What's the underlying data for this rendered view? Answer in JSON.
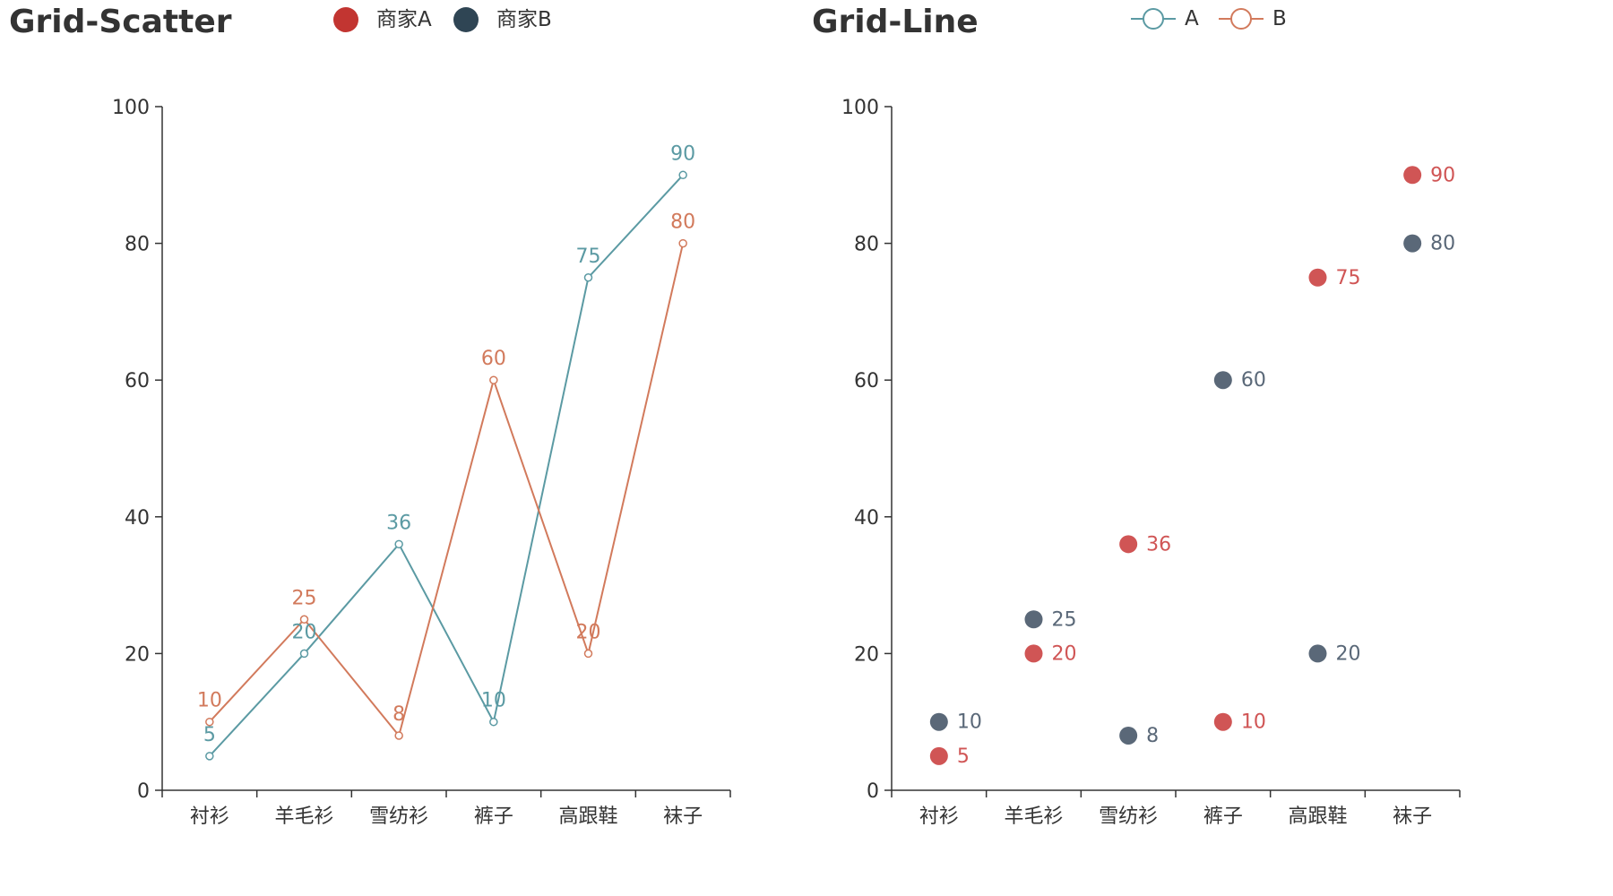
{
  "colors": {
    "axis": "#333333",
    "text": "#333333",
    "legend_a_dot": "#c23531",
    "legend_b_dot": "#2f4554",
    "line_a": "#5b9aa3",
    "line_b": "#d27a5c",
    "scatter_a": "#d05555",
    "scatter_b": "#5a6878"
  },
  "chart_data": [
    {
      "type": "line",
      "title": "Grid-Scatter",
      "legend": [
        "商家A",
        "商家B"
      ],
      "categories": [
        "衬衫",
        "羊毛衫",
        "雪纺衫",
        "裤子",
        "高跟鞋",
        "袜子"
      ],
      "ylim": [
        0,
        100
      ],
      "yticks": [
        0,
        20,
        40,
        60,
        80,
        100
      ],
      "series": [
        {
          "values": [
            5,
            20,
            36,
            10,
            75,
            90
          ]
        },
        {
          "values": [
            10,
            25,
            8,
            60,
            20,
            80
          ]
        }
      ]
    },
    {
      "type": "scatter",
      "title": "Grid-Line",
      "legend": [
        "A",
        "B"
      ],
      "categories": [
        "衬衫",
        "羊毛衫",
        "雪纺衫",
        "裤子",
        "高跟鞋",
        "袜子"
      ],
      "ylim": [
        0,
        100
      ],
      "yticks": [
        0,
        20,
        40,
        60,
        80,
        100
      ],
      "series": [
        {
          "values": [
            5,
            20,
            36,
            10,
            75,
            90
          ]
        },
        {
          "values": [
            10,
            25,
            8,
            60,
            20,
            80
          ]
        }
      ]
    }
  ]
}
